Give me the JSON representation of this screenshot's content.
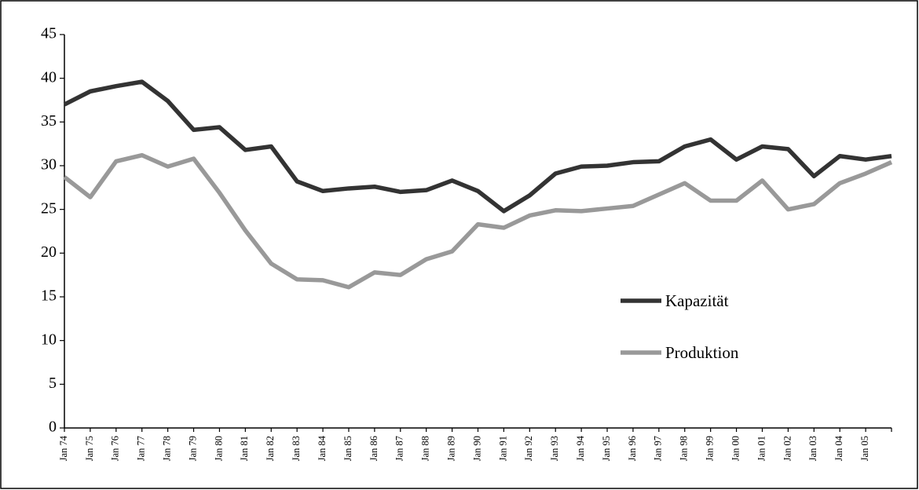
{
  "chart_data": {
    "type": "line",
    "categories": [
      "Jan 74",
      "Jan 75",
      "Jan 76",
      "Jan 77",
      "Jan 78",
      "Jan 79",
      "Jan 80",
      "Jan 81",
      "Jan 82",
      "Jan 83",
      "Jan 84",
      "Jan 85",
      "Jan 86",
      "Jan 87",
      "Jan 88",
      "Jan 89",
      "Jan 90",
      "Jan 91",
      "Jan 92",
      "Jan 93",
      "Jan 94",
      "Jan 95",
      "Jan 96",
      "Jan 97",
      "Jan 98",
      "Jan 99",
      "Jan 00",
      "Jan 01",
      "Jan 02",
      "Jan 03",
      "Jan 04",
      "Jan 05",
      null
    ],
    "series": [
      {
        "name": "Kapazität",
        "color": "#333333",
        "values": [
          37.0,
          38.5,
          39.1,
          39.6,
          37.4,
          34.1,
          34.4,
          31.8,
          32.2,
          28.2,
          27.1,
          27.4,
          27.6,
          27.0,
          27.2,
          28.3,
          27.1,
          24.8,
          26.6,
          29.1,
          29.9,
          30.0,
          30.4,
          30.5,
          32.2,
          33.0,
          30.7,
          32.2,
          31.9,
          28.8,
          31.1,
          30.7,
          31.1
        ]
      },
      {
        "name": "Produktion",
        "color": "#999999",
        "values": [
          28.7,
          26.4,
          30.5,
          31.2,
          29.9,
          30.8,
          26.9,
          22.6,
          18.8,
          17.0,
          16.9,
          16.1,
          17.8,
          17.5,
          19.3,
          20.2,
          23.3,
          22.9,
          24.3,
          24.9,
          24.8,
          25.1,
          25.4,
          26.7,
          28.0,
          26.0,
          26.0,
          28.3,
          25.0,
          25.6,
          28.0,
          29.1,
          30.4
        ]
      }
    ],
    "ylim": [
      0,
      45
    ],
    "yticks": [
      0,
      5,
      10,
      15,
      20,
      25,
      30,
      35,
      40,
      45
    ],
    "grid": false,
    "legend": "right"
  }
}
